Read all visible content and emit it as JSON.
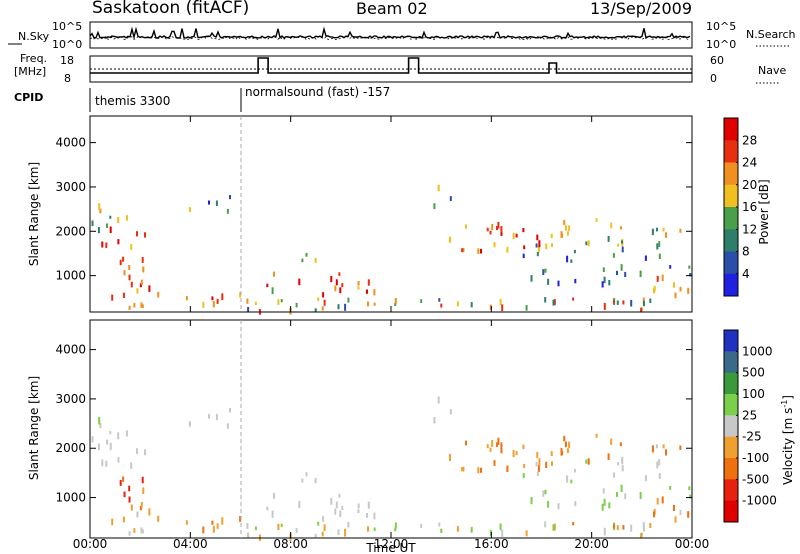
{
  "header": {
    "station": "Saskatoon (fitACF)",
    "beam": "Beam 02",
    "date": "13/Sep/2009"
  },
  "top_panels": {
    "nsky_label": "N.Sky",
    "nsky_ticks": [
      "10^5",
      "10^0"
    ],
    "nsearch_label": "N.Search",
    "nsearch_ticks": [
      "10^5",
      "10^0"
    ],
    "freq_label_1": "Freq.",
    "freq_label_2": "[MHz]",
    "freq_ticks": [
      "18",
      "8"
    ],
    "nave_label": "Nave",
    "nave_ticks": [
      "60",
      "0"
    ],
    "cpid_label": "CPID",
    "cpid_segments": [
      "themis 3300",
      "normalsound (fast) -157"
    ]
  },
  "chart_data": [
    {
      "type": "heatmap",
      "name": "power",
      "ylabel": "Slant Range [km]",
      "yticks": [
        "1000",
        "2000",
        "3000",
        "4000"
      ],
      "ylim": [
        180,
        4600
      ],
      "xlim": [
        0,
        24
      ],
      "colorbar": {
        "label": "Power [dB]",
        "ticks": [
          "4",
          "8",
          "12",
          "16",
          "20",
          "24",
          "28"
        ],
        "range": [
          0,
          32
        ]
      }
    },
    {
      "type": "heatmap",
      "name": "velocity",
      "ylabel": "Slant Range [km]",
      "yticks": [
        "1000",
        "2000",
        "3000",
        "4000"
      ],
      "ylim": [
        180,
        4600
      ],
      "xlim": [
        0,
        24
      ],
      "colorbar": {
        "label": "Velocity [m s",
        "label_sup": "-1",
        "label_end": "]",
        "ticks": [
          "1000",
          "500",
          "100",
          "25",
          "-25",
          "-100",
          "-500",
          "-1000"
        ]
      }
    }
  ],
  "xaxis": {
    "label": "Time UT",
    "ticks": [
      "00:00",
      "04:00",
      "08:00",
      "12:00",
      "16:00",
      "20:00",
      "00:00"
    ]
  },
  "colors": {
    "power_scale": [
      "#2020e0",
      "#2a4fa8",
      "#2e7f6a",
      "#4aa04a",
      "#f0c020",
      "#f09020",
      "#e83010",
      "#e00000"
    ],
    "velocity_scale": [
      "#2030c0",
      "#3a6a8a",
      "#3a9a3a",
      "#7ad04a",
      "#c8c8c8",
      "#f0a030",
      "#f07010",
      "#e82010",
      "#e00000"
    ]
  }
}
